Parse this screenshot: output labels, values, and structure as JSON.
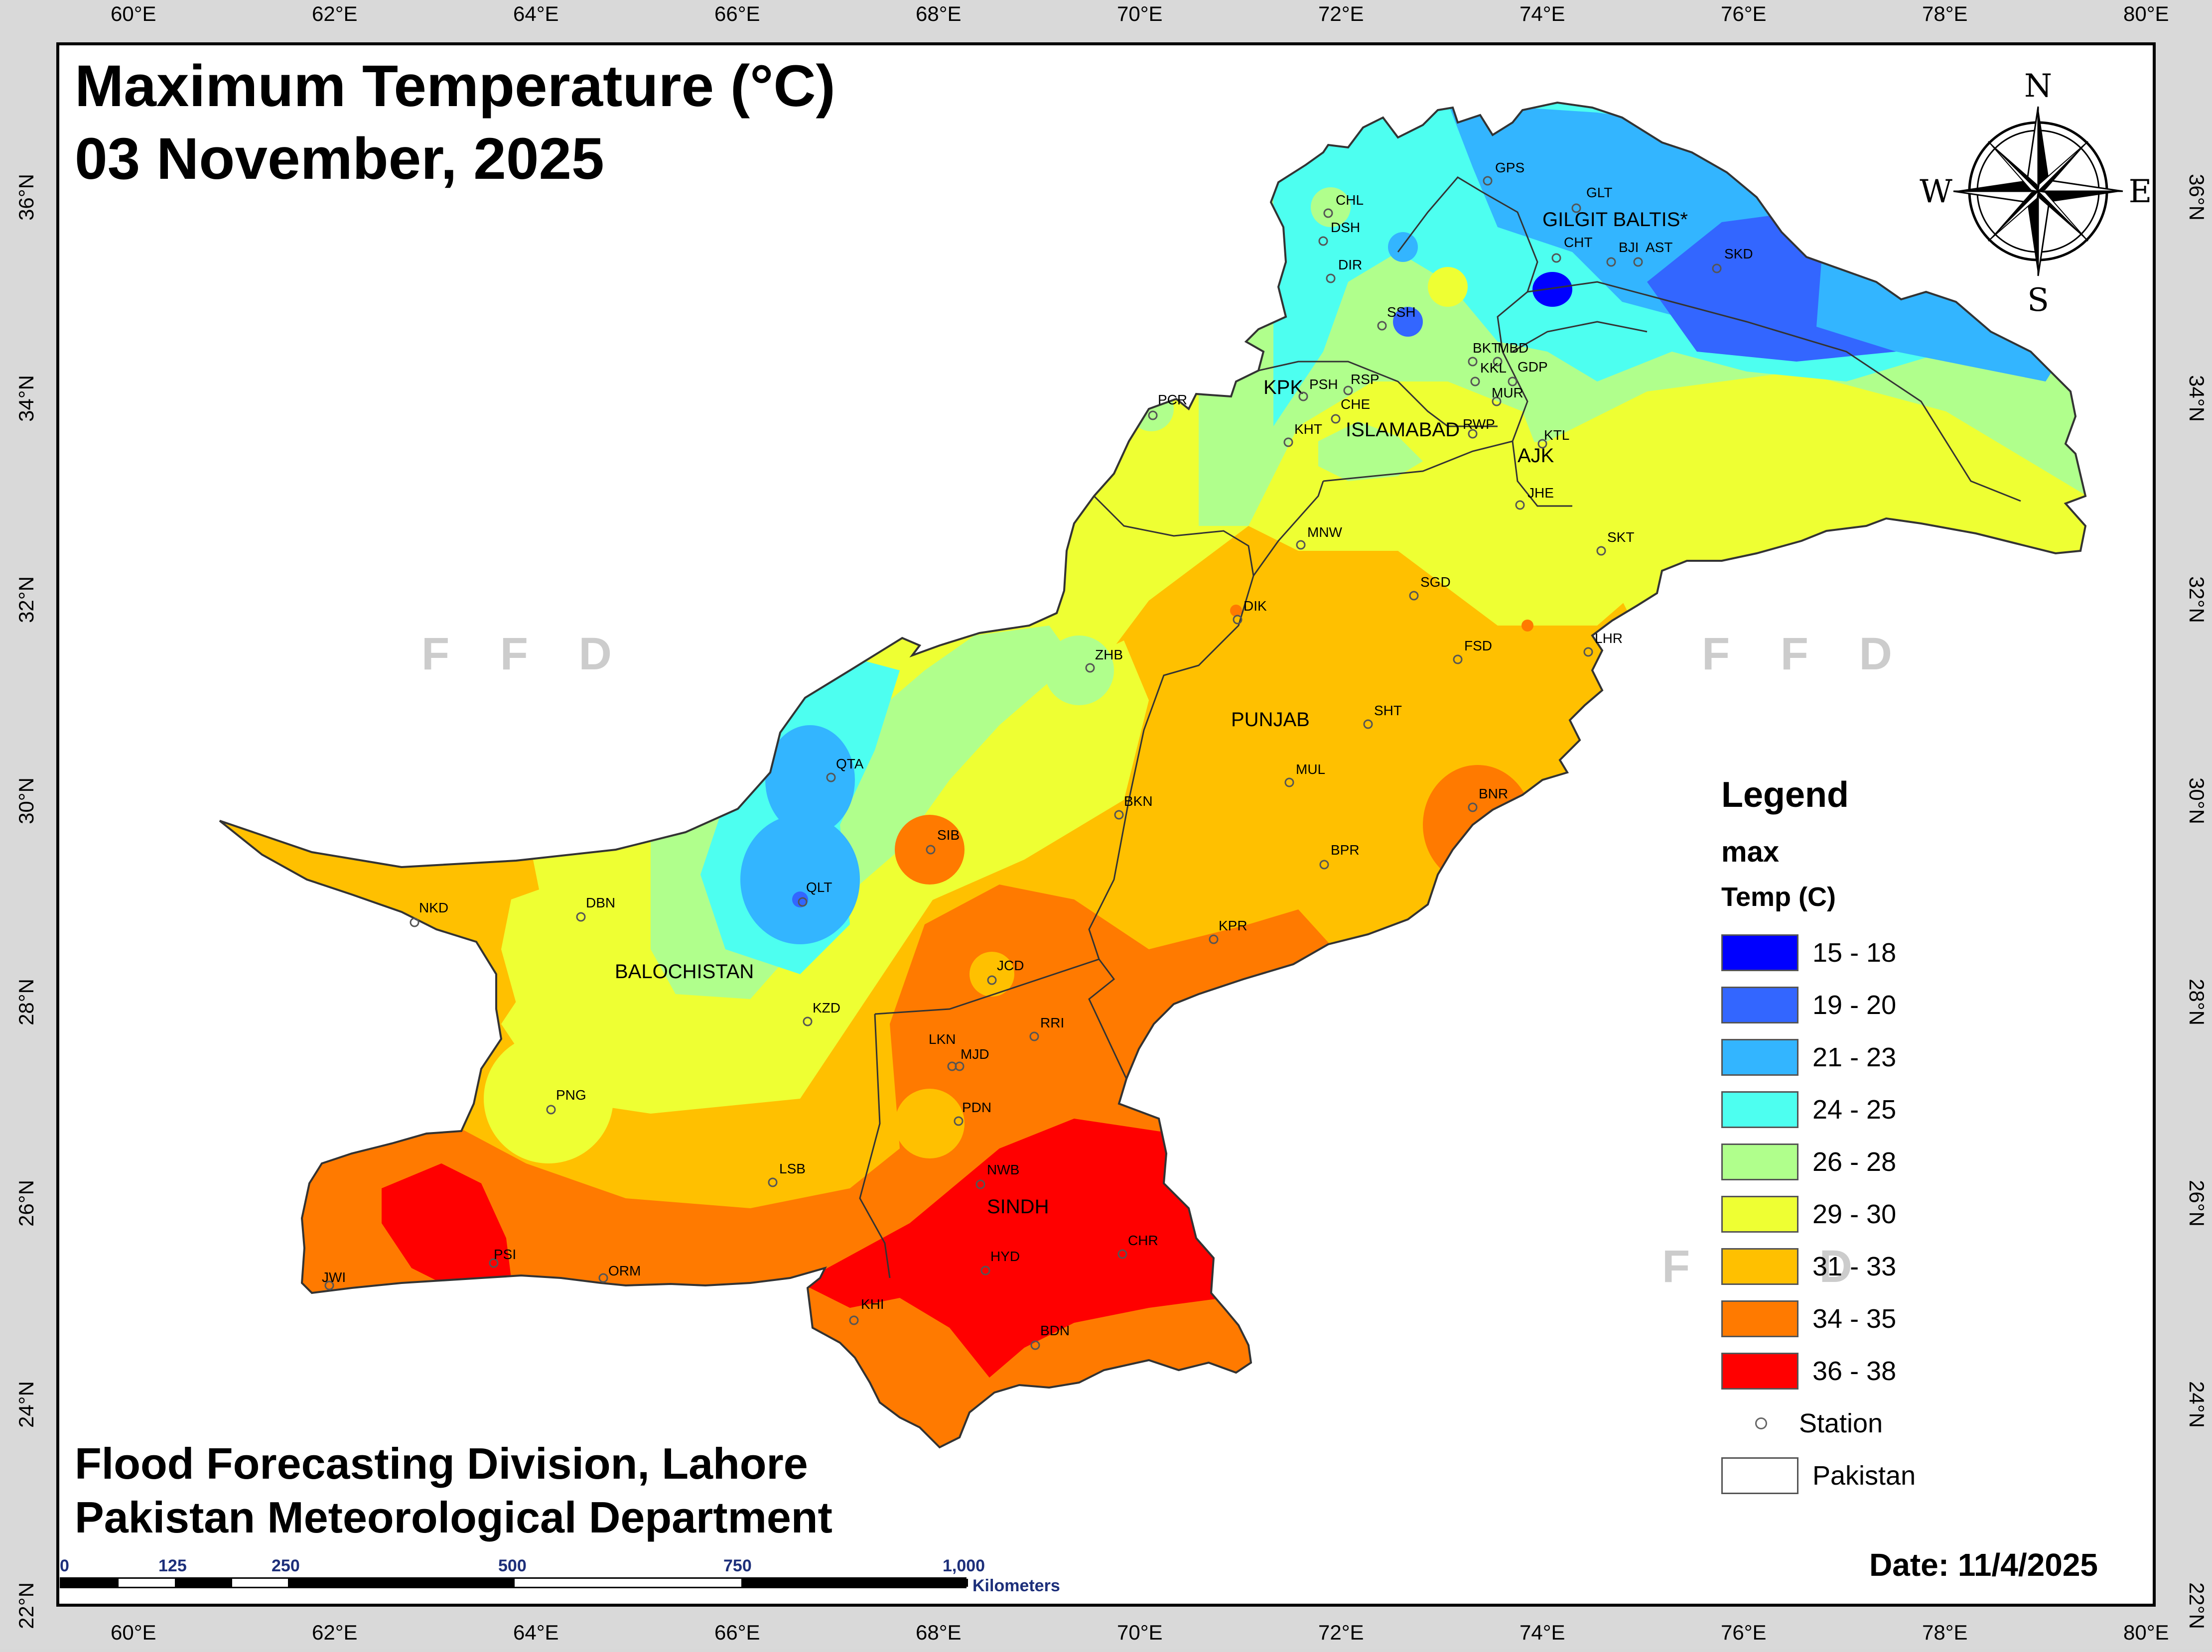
{
  "title": {
    "line1": "Maximum Temperature (°C)",
    "line2": "03 November, 2025"
  },
  "credits": {
    "line1": "Flood Forecasting Division, Lahore",
    "line2": "Pakistan Meteorological Department"
  },
  "date_label": "Date: 11/4/2025",
  "watermark_text": "F F D",
  "axes": {
    "longitude_labels": [
      "60°E",
      "62°E",
      "64°E",
      "66°E",
      "68°E",
      "70°E",
      "72°E",
      "74°E",
      "76°E",
      "78°E",
      "80°E"
    ],
    "latitude_labels": [
      "36°N",
      "34°N",
      "32°N",
      "30°N",
      "28°N",
      "26°N",
      "24°N",
      "22°N"
    ]
  },
  "compass": {
    "n": "N",
    "s": "S",
    "e": "E",
    "w": "W"
  },
  "legend": {
    "heading": "Legend",
    "subheading": "max",
    "field": "Temp (C)",
    "classes": [
      {
        "label": "15 - 18",
        "color": "#0000ff"
      },
      {
        "label": "19 - 20",
        "color": "#3366ff"
      },
      {
        "label": "21 - 23",
        "color": "#33b5ff"
      },
      {
        "label": "24 - 25",
        "color": "#4dfff0"
      },
      {
        "label": "26 - 28",
        "color": "#b0ff8c"
      },
      {
        "label": "29 - 30",
        "color": "#eeff33"
      },
      {
        "label": "31 - 33",
        "color": "#ffc000"
      },
      {
        "label": "34 - 35",
        "color": "#ff7a00"
      },
      {
        "label": "36 - 38",
        "color": "#ff0000"
      }
    ],
    "station_label": "Station",
    "boundary_label": "Pakistan"
  },
  "scale_bar": {
    "ticks": [
      "0",
      "125",
      "250",
      "500",
      "750",
      "1,000"
    ],
    "unit": "Kilometers"
  },
  "regions": {
    "gb": "GILGIT BALTIS*",
    "kpk": "KPK",
    "islamabad": "ISLAMABAD",
    "ajk": "AJK",
    "punjab": "PUNJAB",
    "balochistan": "BALOCHISTAN",
    "sindh": "SINDH"
  },
  "stations": [
    "GPS",
    "GLT",
    "CHT",
    "BJI",
    "AST",
    "SKD",
    "CHL",
    "DSH",
    "DIR",
    "SSH",
    "BKT",
    "MBD",
    "GDP",
    "KKL",
    "MUR",
    "RWP",
    "KTL",
    "PSH",
    "RSP",
    "CHE",
    "KHT",
    "PCR",
    "JHE",
    "SKT",
    "MNW",
    "SGD",
    "DIK",
    "ZHB",
    "FSD",
    "LHR",
    "SHT",
    "MUL",
    "QTA",
    "BKN",
    "BNR",
    "BPR",
    "SIB",
    "NKD",
    "DBN",
    "QLT",
    "KPR",
    "JCD",
    "KZD",
    "RRI",
    "LKN",
    "MJD",
    "PNG",
    "PDN",
    "LSB",
    "NWB",
    "CHR",
    "HYD",
    "PSI",
    "ORM",
    "JWI",
    "KHI",
    "BDN"
  ]
}
